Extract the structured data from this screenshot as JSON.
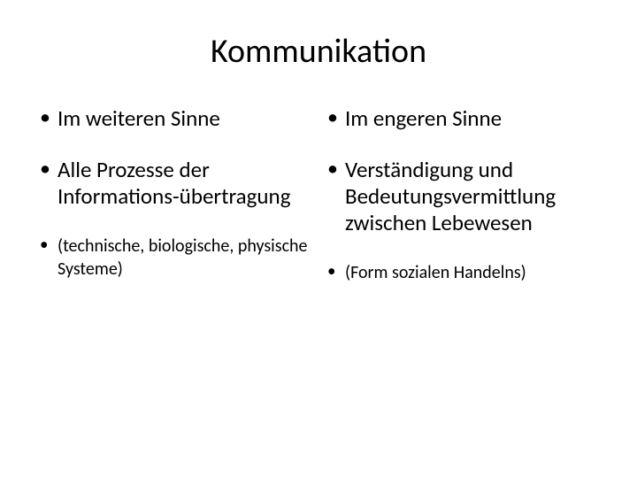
{
  "slide": {
    "title": "Kommunikation",
    "left_column": {
      "item1": "Im weiteren Sinne",
      "item2": "Alle Prozesse der Informations-übertragung",
      "item3": "(technische, biologische, physische Systeme)"
    },
    "right_column": {
      "item1": "Im engeren Sinne",
      "item2": "Verständigung und Bedeutungsvermittlung zwischen Lebewesen",
      "item3": "(Form sozialen Handelns)"
    },
    "styling": {
      "background_color": "#ffffff",
      "text_color": "#000000",
      "title_fontsize": 38,
      "body_fontsize": 25,
      "small_fontsize": 20,
      "font_family": "Calibri",
      "bullet_char": "•",
      "slide_width": 720,
      "slide_height": 540
    }
  }
}
